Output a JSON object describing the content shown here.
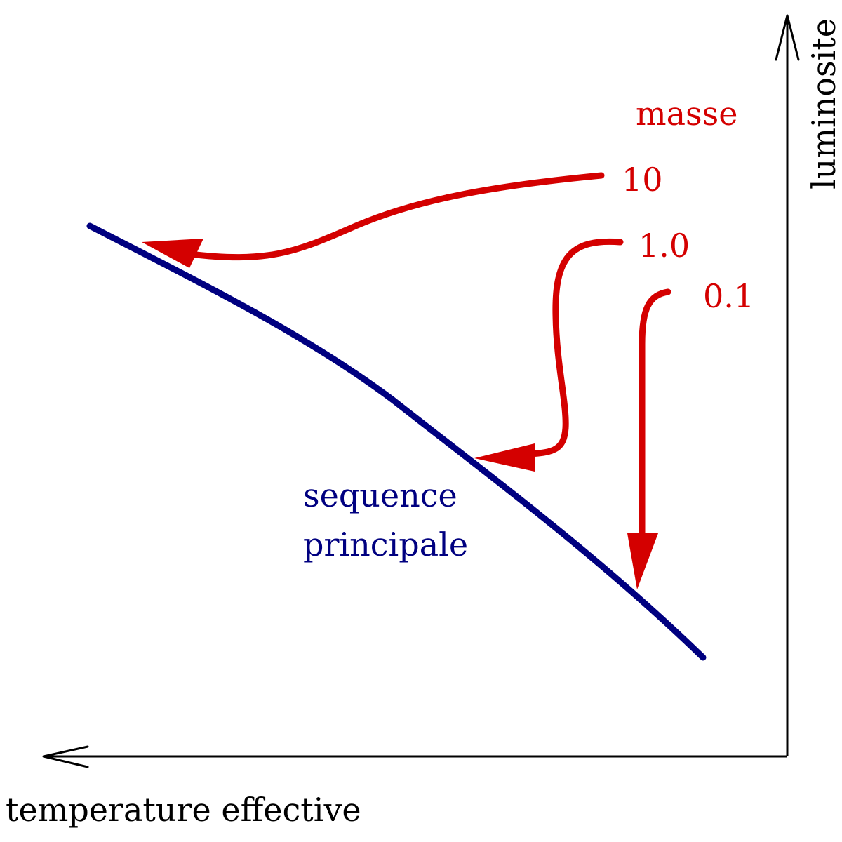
{
  "axes": {
    "x_label": "temperature effective",
    "y_label": "luminosite"
  },
  "main_sequence": {
    "label_line1": "sequence",
    "label_line2": "principale",
    "color": "#000080"
  },
  "mass": {
    "title": "masse",
    "color": "#d40000",
    "tracks": [
      {
        "mass": "10"
      },
      {
        "mass": "1.0"
      },
      {
        "mass": "0.1"
      }
    ]
  }
}
